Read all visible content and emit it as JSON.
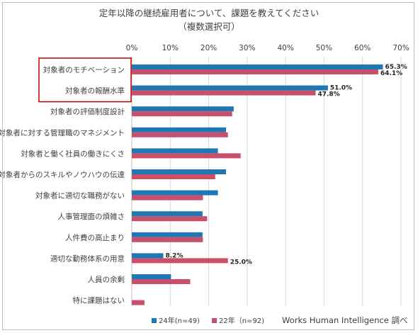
{
  "chart_data": {
    "type": "bar",
    "orientation": "horizontal",
    "title": "定年以降の継続雇用者について、課題を教えてください",
    "subtitle": "（複数選択可）",
    "xlabel": "",
    "ylabel": "",
    "xlim": [
      0,
      70
    ],
    "x_ticks": [
      "0%",
      "10%",
      "20%",
      "30%",
      "40%",
      "50%",
      "60%",
      "70%"
    ],
    "grid": true,
    "legend_position": "bottom",
    "categories": [
      "対象者のモチベーション",
      "対象者の報酬水準",
      "対象者の評価制度設計",
      "対象者に対する管理職のマネジメント",
      "対象者と働く社員の働きにくさ",
      "対象者からのスキルやノウハウの伝達",
      "対象者に適切な職務がない",
      "人事管理面の煩雑さ",
      "人件費の高止まり",
      "適切な勤務体系の用意",
      "人員の余剰",
      "特に課題はない"
    ],
    "series": [
      {
        "name": "24年(n=49)",
        "color": "#1f77b4",
        "values": [
          65.3,
          51.0,
          26.5,
          24.5,
          22.4,
          24.5,
          22.4,
          18.4,
          18.4,
          8.2,
          10.2,
          0.0
        ],
        "labels": [
          "65.3%",
          "51.0%",
          null,
          null,
          null,
          null,
          null,
          null,
          null,
          "8.2%",
          null,
          null
        ]
      },
      {
        "name": "22年（n=92)",
        "color": "#c9506b",
        "values": [
          64.1,
          47.8,
          26.1,
          25.0,
          28.3,
          21.7,
          18.5,
          19.6,
          18.5,
          25.0,
          15.2,
          3.3
        ],
        "labels": [
          "64.1%",
          "47.8%",
          null,
          null,
          null,
          null,
          null,
          null,
          null,
          "25.0%",
          null,
          null
        ]
      }
    ],
    "highlighted_categories": [
      "対象者のモチベーション",
      "対象者の報酬水準"
    ],
    "highlight_color": "#c00000",
    "source": "Works Human Intelligence 調べ"
  }
}
